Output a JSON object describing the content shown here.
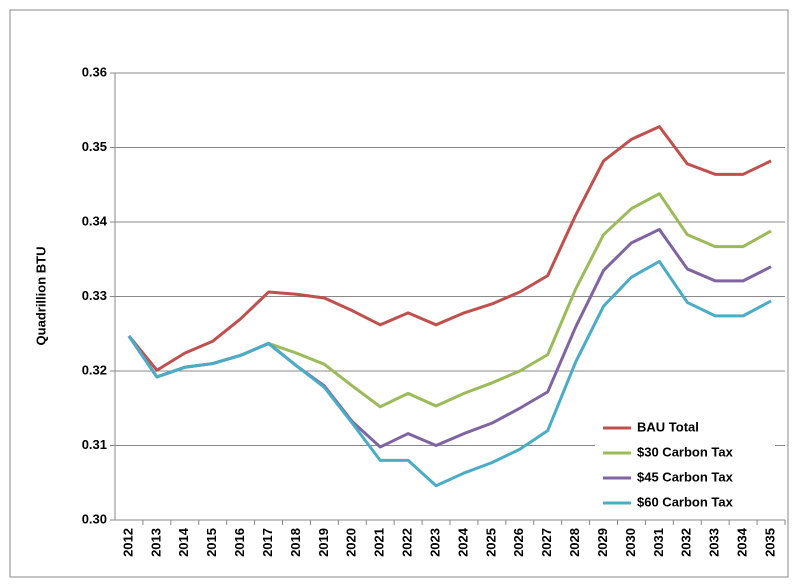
{
  "chart_data": {
    "type": "line",
    "y_label": "Quadrillion BTU",
    "categories": [
      "2012",
      "2013",
      "2014",
      "2015",
      "2016",
      "2017",
      "2018",
      "2019",
      "2020",
      "2021",
      "2022",
      "2023",
      "2024",
      "2025",
      "2026",
      "2027",
      "2028",
      "2029",
      "2030",
      "2031",
      "2032",
      "2033",
      "2034",
      "2035"
    ],
    "series": [
      {
        "name": "BAU Total",
        "color": "#c0504d",
        "values": [
          0.3247,
          0.3201,
          0.3224,
          0.324,
          0.327,
          0.3306,
          0.3303,
          0.3298,
          0.3281,
          0.3262,
          0.3278,
          0.3262,
          0.3278,
          0.329,
          0.3306,
          0.3328,
          0.3409,
          0.3482,
          0.3511,
          0.3528,
          0.3478,
          0.3464,
          0.3464,
          0.3482
        ]
      },
      {
        "name": "$30 Carbon Tax",
        "color": "#9bbb59",
        "values": [
          0.3247,
          0.3192,
          0.3205,
          0.321,
          0.3221,
          0.3237,
          0.3224,
          0.3209,
          0.318,
          0.3152,
          0.317,
          0.3153,
          0.317,
          0.3184,
          0.32,
          0.3222,
          0.331,
          0.3383,
          0.3418,
          0.3438,
          0.3383,
          0.3367,
          0.3367,
          0.3388
        ]
      },
      {
        "name": "$45 Carbon Tax",
        "color": "#8064a2",
        "values": [
          0.3247,
          0.3192,
          0.3205,
          0.321,
          0.3221,
          0.3237,
          0.3207,
          0.318,
          0.3132,
          0.3098,
          0.3116,
          0.31,
          0.3116,
          0.313,
          0.315,
          0.3172,
          0.3259,
          0.3335,
          0.3372,
          0.339,
          0.3337,
          0.3321,
          0.3321,
          0.334
        ]
      },
      {
        "name": "$60 Carbon Tax",
        "color": "#4bacc6",
        "values": [
          0.3247,
          0.3192,
          0.3205,
          0.321,
          0.3221,
          0.3237,
          0.3207,
          0.3178,
          0.313,
          0.308,
          0.308,
          0.3046,
          0.3063,
          0.3077,
          0.3095,
          0.312,
          0.3212,
          0.3287,
          0.3326,
          0.3347,
          0.3292,
          0.3274,
          0.3274,
          0.3294
        ]
      }
    ],
    "ylim": [
      0.3,
      0.36
    ],
    "yticks": [
      {
        "value": 0.3,
        "label": "0.30"
      },
      0.31,
      0.32,
      0.33,
      0.34,
      0.35,
      0.36
    ],
    "grid": true,
    "legend": "lower right"
  }
}
